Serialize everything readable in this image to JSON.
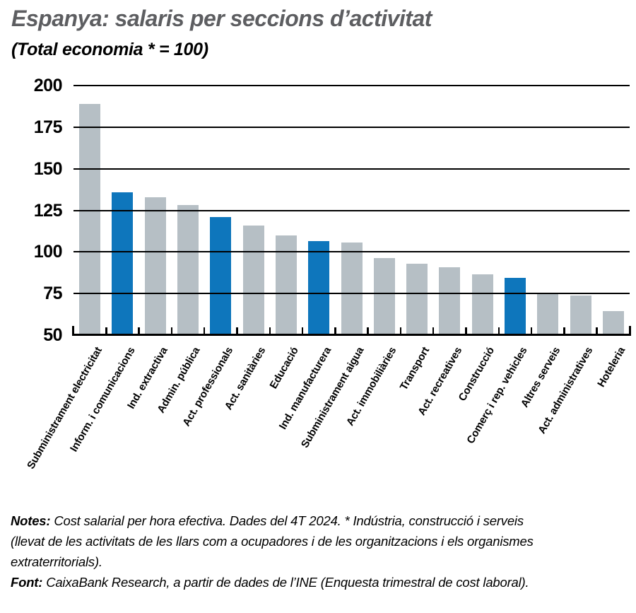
{
  "header": {
    "title": "Espanya: salaris per seccions d’activitat",
    "subtitle": "(Total economia * = 100)"
  },
  "chart_data": {
    "type": "bar",
    "title": "Espanya: salaris per seccions d’activitat",
    "subtitle": "(Total economia * = 100)",
    "categories": [
      "Subministrament electricitat",
      "Inform. i comunicacions",
      "Ind. extractiva",
      "Admin. pública",
      "Act. professionals",
      "Act. sanitàries",
      "Educació",
      "Ind. manufacturera",
      "Subministrament aigua",
      "Act. immobiliàries",
      "Transport",
      "Act. recreatives",
      "Construcció",
      "Comerç i rep. vehicles",
      "Altres serveis",
      "Act. administratives",
      "Hoteleria"
    ],
    "values": [
      189,
      136,
      133,
      128,
      121,
      116,
      110,
      106.5,
      105.5,
      96.5,
      93,
      91,
      86.5,
      84.5,
      74.5,
      74,
      64.5
    ],
    "highlighted": [
      false,
      true,
      false,
      false,
      true,
      false,
      false,
      true,
      false,
      false,
      false,
      false,
      false,
      true,
      false,
      false,
      false
    ],
    "ylim": [
      50,
      200
    ],
    "yticks": [
      50,
      75,
      100,
      125,
      150,
      175,
      200
    ],
    "xlabel": "",
    "ylabel": "",
    "grid": "horizontal",
    "legend": "none",
    "bar_color": "#b6bfc5",
    "highlight_color": "#0e76bc"
  },
  "footer": {
    "notes_prefix": "Notes:",
    "notes_line1": "Cost salarial per hora efectiva. Dades del 4T 2024. * Indústria, construcció i serveis",
    "notes_line2": "(llevat de les activitats de les llars com a ocupadores i de les organitzacions i els organismes",
    "notes_line3": "extraterritorials).",
    "font_prefix": "Font:",
    "font_text": "CaixaBank Research, a partir de dades de l’INE (Enquesta trimestral de cost laboral)."
  }
}
